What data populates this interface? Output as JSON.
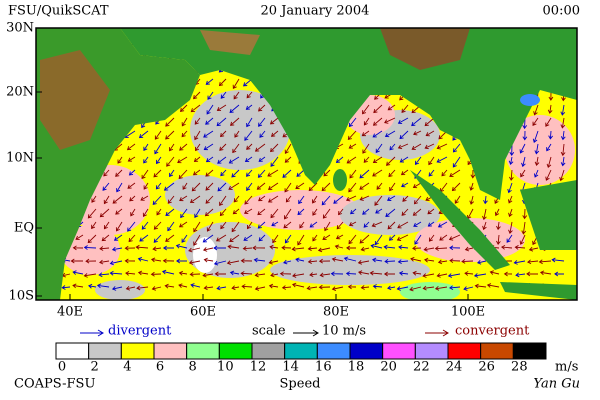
{
  "header": {
    "left": "FSU/QuikSCAT",
    "center": "20 January 2004",
    "right": "00:00"
  },
  "map": {
    "lat_labels": [
      "30N",
      "20N",
      "10N",
      "EQ",
      "10S"
    ],
    "lon_labels": [
      "40E",
      "60E",
      "80E",
      "100E"
    ]
  },
  "legend": {
    "divergent": "divergent",
    "scale": "scale",
    "scale_value": "10 m/s",
    "convergent": "convergent"
  },
  "colorbar": {
    "labels": [
      "0",
      "2",
      "4",
      "6",
      "8",
      "10",
      "12",
      "14",
      "16",
      "18",
      "20",
      "22",
      "24",
      "26",
      "28"
    ],
    "unit": "m/s",
    "title": "Speed"
  },
  "footer": {
    "left": "COAPS-FSU",
    "right": "Yan Gu"
  }
}
